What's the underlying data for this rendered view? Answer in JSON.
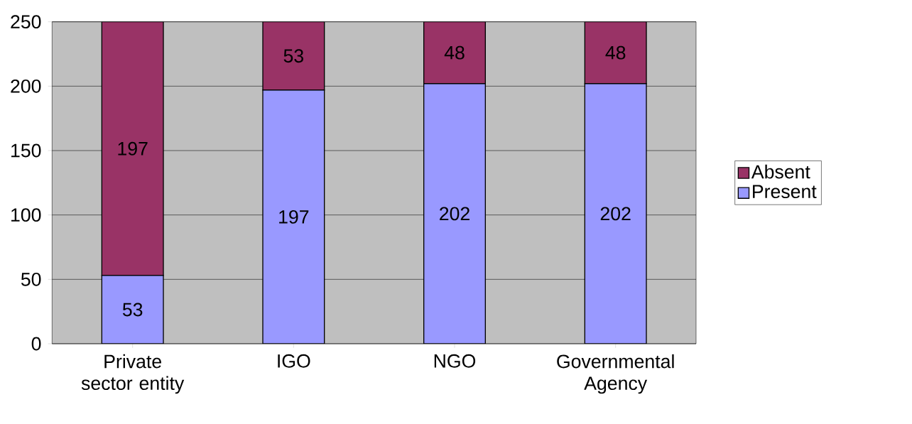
{
  "chart_data": {
    "type": "bar",
    "stacked": true,
    "categories": [
      "Private sector entity",
      "IGO",
      "NGO",
      "Governmental Agency"
    ],
    "series": [
      {
        "name": "Present",
        "color": "#9999ff",
        "values": [
          53,
          197,
          202,
          202
        ]
      },
      {
        "name": "Absent",
        "color": "#993366",
        "values": [
          197,
          53,
          48,
          48
        ]
      }
    ],
    "ylim": [
      0,
      250
    ],
    "yticks": [
      0,
      50,
      100,
      150,
      200,
      250
    ],
    "grid": "y",
    "legend": "right",
    "data_labels": true
  }
}
